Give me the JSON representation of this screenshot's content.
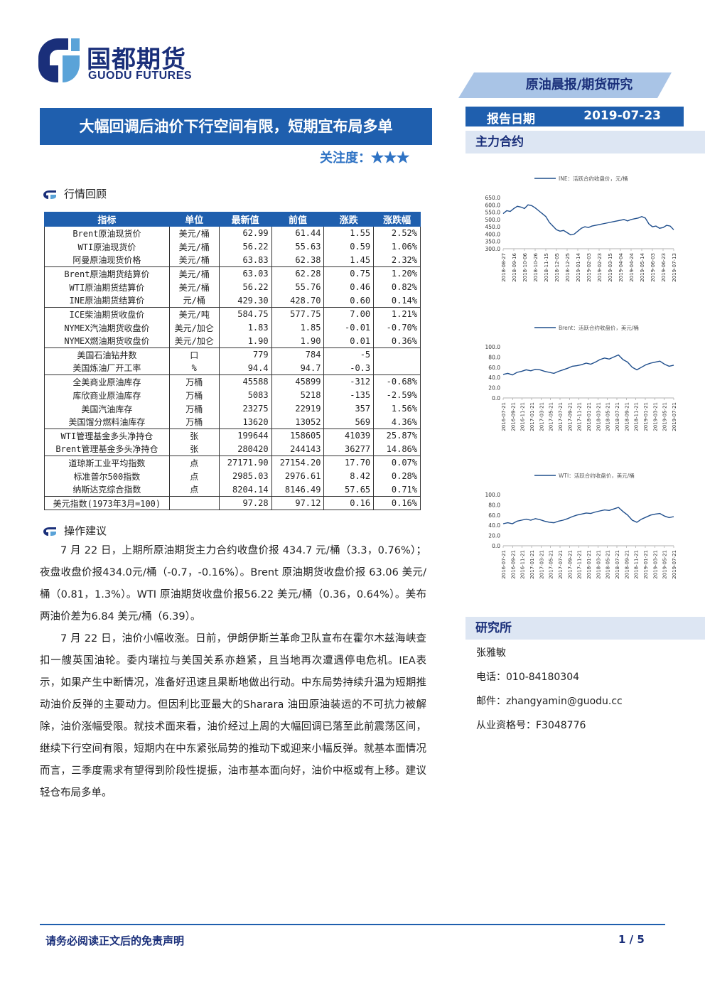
{
  "header": {
    "logo_cn": "国都期货",
    "logo_en": "GUODU FUTURES",
    "tag": "原油晨报/期货研究",
    "title": "大幅回调后油价下行空间有限，短期宜布局多单",
    "attention_label": "关注度：",
    "attention_stars": "★★★",
    "report_date_label": "报告日期",
    "report_date": "2019-07-23"
  },
  "sections": {
    "market_review": "行情回顾",
    "advice": "操作建议",
    "main_contract": "主力合约",
    "research": "研究所"
  },
  "table": {
    "headers": [
      "指标",
      "单位",
      "最新值",
      "前值",
      "涨跌",
      "涨跌幅"
    ],
    "groups": [
      [
        [
          "Brent原油现货价",
          "美元/桶",
          "62.99",
          "61.44",
          "1.55",
          "2.52%"
        ],
        [
          "WTI原油现货价",
          "美元/桶",
          "56.22",
          "55.63",
          "0.59",
          "1.06%"
        ],
        [
          "阿曼原油现货价格",
          "美元/桶",
          "63.83",
          "62.38",
          "1.45",
          "2.32%"
        ]
      ],
      [
        [
          "Brent原油期货结算价",
          "美元/桶",
          "63.03",
          "62.28",
          "0.75",
          "1.20%"
        ],
        [
          "WTI原油期货结算价",
          "美元/桶",
          "56.22",
          "55.76",
          "0.46",
          "0.82%"
        ],
        [
          "INE原油期货结算价",
          "元/桶",
          "429.30",
          "428.70",
          "0.60",
          "0.14%"
        ]
      ],
      [
        [
          "ICE柴油期货收盘价",
          "美元/吨",
          "584.75",
          "577.75",
          "7.00",
          "1.21%"
        ],
        [
          "NYMEX汽油期货收盘价",
          "美元/加仑",
          "1.83",
          "1.85",
          "-0.01",
          "-0.70%"
        ],
        [
          "NYMEX燃油期货收盘价",
          "美元/加仑",
          "1.90",
          "1.90",
          "0.01",
          "0.36%"
        ]
      ],
      [
        [
          "美国石油钻井数",
          "口",
          "779",
          "784",
          "-5",
          ""
        ],
        [
          "美国炼油厂开工率",
          "%",
          "94.4",
          "94.7",
          "-0.3",
          ""
        ]
      ],
      [
        [
          "全美商业原油库存",
          "万桶",
          "45588",
          "45899",
          "-312",
          "-0.68%"
        ],
        [
          "库欣商业原油库存",
          "万桶",
          "5083",
          "5218",
          "-135",
          "-2.59%"
        ],
        [
          "美国汽油库存",
          "万桶",
          "23275",
          "22919",
          "357",
          "1.56%"
        ],
        [
          "美国馏分燃料油库存",
          "万桶",
          "13620",
          "13052",
          "569",
          "4.36%"
        ]
      ],
      [
        [
          "WTI管理基金多头净持仓",
          "张",
          "199644",
          "158605",
          "41039",
          "25.87%"
        ],
        [
          "Brent管理基金多头净持仓",
          "张",
          "280420",
          "244143",
          "36277",
          "14.86%"
        ]
      ],
      [
        [
          "道琼斯工业平均指数",
          "点",
          "27171.90",
          "27154.20",
          "17.70",
          "0.07%"
        ],
        [
          "标准普尔500指数",
          "点",
          "2985.03",
          "2976.61",
          "8.42",
          "0.28%"
        ],
        [
          "纳斯达克综合指数",
          "点",
          "8204.14",
          "8146.49",
          "57.65",
          "0.71%"
        ]
      ],
      [
        [
          "美元指数(1973年3月=100)",
          "",
          "97.28",
          "97.12",
          "0.16",
          "0.16%"
        ]
      ]
    ]
  },
  "paragraphs": [
    "7 月 22 日，上期所原油期货主力合约收盘价报 434.7 元/桶（3.3，0.76%）；夜盘收盘价报434.0元/桶（-0.7，-0.16%）。Brent 原油期货收盘价报 63.06 美元/桶（0.81，1.3%）。WTI 原油期货收盘价报56.22 美元/桶（0.36，0.64%）。美布两油价差为6.84 美元/桶（6.39）。",
    "7 月 22 日，油价小幅收涨。日前，伊朗伊斯兰革命卫队宣布在霍尔木兹海峡查扣一艘英国油轮。委内瑞拉与美国关系亦趋紧，且当地再次遭遇停电危机。IEA表示，如果产生中断情况，准备好迅速且果断地做出行动。中东局势持续升温为短期推动油价反弹的主要动力。但因利比亚最大的Sharara 油田原油装运的不可抗力被解除，油价涨幅受限。就技术面来看，油价经过上周的大幅回调已落至此前震荡区间，继续下行空间有限，短期内在中东紧张局势的推动下或迎来小幅反弹。就基本面情况而言，三季度需求有望得到阶段性提振，油市基本面向好，油价中枢或有上移。建议轻仓布局多单。"
  ],
  "contact": {
    "name": "张雅敏",
    "phone": "电话：010-84180304",
    "email": "邮件：zhangyamin@guodu.cc",
    "license": "从业资格号：F3048776"
  },
  "footer": {
    "disclaimer": "请务必阅读正文后的免责声明",
    "page": "1 / 5"
  },
  "colors": {
    "brand": "#1f5fae",
    "dark": "#1a2f7a",
    "line": "#1f4e8c"
  },
  "chart_data": [
    {
      "type": "line",
      "legend": "INE：活跃合约收盘价，元/桶",
      "ylim": [
        300,
        650
      ],
      "yticks": [
        "650.0",
        "600.0",
        "550.0",
        "500.0",
        "450.0",
        "400.0",
        "350.0",
        "300.0"
      ],
      "xticks": [
        "2018-08-27",
        "2018-09-16",
        "2018-10-06",
        "2018-10-26",
        "2018-11-15",
        "2018-12-05",
        "2018-12-25",
        "2019-01-14",
        "2019-02-03",
        "2019-02-23",
        "2019-03-15",
        "2019-04-04",
        "2019-04-24",
        "2019-05-14",
        "2019-06-03",
        "2019-06-23",
        "2019-07-13"
      ],
      "values": [
        540,
        560,
        555,
        575,
        590,
        585,
        575,
        600,
        595,
        580,
        560,
        540,
        520,
        480,
        455,
        430,
        420,
        425,
        410,
        395,
        400,
        420,
        440,
        450,
        445,
        455,
        460,
        465,
        470,
        475,
        480,
        485,
        490,
        495,
        500,
        490,
        500,
        505,
        510,
        520,
        510,
        470,
        450,
        455,
        440,
        445,
        460,
        455,
        430
      ]
    },
    {
      "type": "line",
      "legend": "Brent：活跃合约收盘价，美元/桶",
      "ylim": [
        0,
        100
      ],
      "yticks": [
        "100.0",
        "80.0",
        "60.0",
        "40.0",
        "20.0",
        "0.0"
      ],
      "xticks": [
        "2016-07-21",
        "2016-09-21",
        "2016-11-21",
        "2017-01-21",
        "2017-03-21",
        "2017-05-21",
        "2017-07-21",
        "2017-09-21",
        "2017-11-21",
        "2018-01-21",
        "2018-03-21",
        "2018-05-21",
        "2018-07-21",
        "2018-09-21",
        "2018-11-21",
        "2019-01-21",
        "2019-03-21",
        "2019-05-21",
        "2019-07-21"
      ],
      "values": [
        46,
        48,
        45,
        50,
        52,
        55,
        53,
        56,
        55,
        52,
        50,
        48,
        52,
        55,
        58,
        62,
        63,
        65,
        68,
        66,
        70,
        75,
        78,
        76,
        80,
        84,
        75,
        70,
        60,
        55,
        60,
        65,
        68,
        70,
        72,
        66,
        62,
        64
      ]
    },
    {
      "type": "line",
      "legend": "WTI：活跃合约收盘价，美元/桶",
      "ylim": [
        0,
        100
      ],
      "yticks": [
        "100.0",
        "80.0",
        "60.0",
        "40.0",
        "20.0",
        "0.0"
      ],
      "xticks": [
        "2016-07-21",
        "2016-09-21",
        "2016-11-21",
        "2017-01-21",
        "2017-03-21",
        "2017-05-21",
        "2017-07-21",
        "2017-09-21",
        "2017-11-21",
        "2018-01-21",
        "2018-03-21",
        "2018-05-21",
        "2018-07-21",
        "2018-09-21",
        "2018-11-21",
        "2019-01-21",
        "2019-03-21",
        "2019-05-21",
        "2019-07-21"
      ],
      "values": [
        43,
        45,
        43,
        48,
        50,
        52,
        50,
        53,
        51,
        48,
        46,
        45,
        48,
        50,
        53,
        57,
        60,
        62,
        64,
        63,
        66,
        68,
        70,
        69,
        72,
        75,
        67,
        60,
        50,
        46,
        52,
        56,
        60,
        62,
        63,
        58,
        55,
        57
      ]
    }
  ]
}
